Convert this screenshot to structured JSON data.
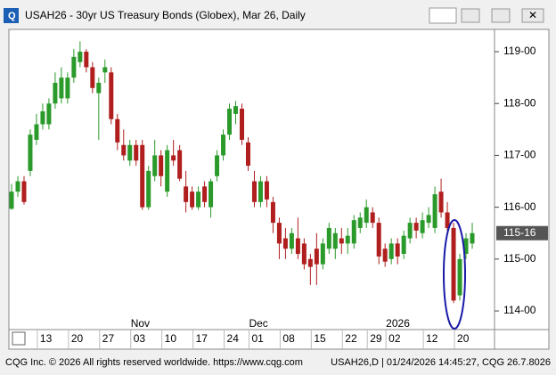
{
  "window": {
    "title": "USAH26 - 30yr US Treasury Bonds (Globex), Mar 26, Daily",
    "footer_left": "CQG Inc. © 2026 All rights reserved worldwide. https://www.cqg.com",
    "footer_right": "USAH26,D | 01/24/2026 14:45:27, CQG 26.7.8026"
  },
  "chart_data": {
    "type": "candlestick",
    "categories": [
      null,
      null,
      null,
      null,
      null,
      "13",
      null,
      null,
      null,
      null,
      "20",
      null,
      null,
      null,
      null,
      "27",
      null,
      null,
      null,
      null,
      "03",
      null,
      null,
      null,
      null,
      "10",
      null,
      null,
      null,
      null,
      "17",
      null,
      null,
      null,
      null,
      "24",
      null,
      null,
      null,
      "01",
      null,
      null,
      null,
      null,
      "08",
      null,
      null,
      null,
      null,
      "15",
      null,
      null,
      null,
      null,
      "22",
      null,
      null,
      null,
      "29",
      null,
      null,
      "02",
      null,
      null,
      null,
      null,
      null,
      "12",
      null,
      null,
      null,
      null,
      "20",
      null,
      null
    ],
    "months": [
      null,
      null,
      null,
      null,
      null,
      null,
      null,
      null,
      null,
      null,
      null,
      null,
      null,
      null,
      null,
      null,
      null,
      null,
      null,
      null,
      "Nov",
      null,
      null,
      null,
      null,
      null,
      null,
      null,
      null,
      null,
      null,
      null,
      null,
      null,
      null,
      null,
      null,
      null,
      null,
      "Dec",
      null,
      null,
      null,
      null,
      null,
      null,
      null,
      null,
      null,
      null,
      null,
      null,
      null,
      null,
      null,
      null,
      null,
      null,
      null,
      null,
      null,
      "2026",
      null,
      null,
      null,
      null,
      null,
      null,
      null,
      null,
      null,
      null,
      null,
      null,
      null
    ],
    "open": [
      115.97,
      116.3,
      116.5,
      116.7,
      117.3,
      117.6,
      117.6,
      118.0,
      118.1,
      118.1,
      118.5,
      118.8,
      119.0,
      118.7,
      118.2,
      118.6,
      118.6,
      117.7,
      117.2,
      116.9,
      117.2,
      117.2,
      116.0,
      116.6,
      117.0,
      116.3,
      117.0,
      117.1,
      116.4,
      116.3,
      116.0,
      116.4,
      116.0,
      116.6,
      117.0,
      117.4,
      117.8,
      117.9,
      117.25,
      116.5,
      116.1,
      116.5,
      116.1,
      115.7,
      115.4,
      115.2,
      115.4,
      115.3,
      115.0,
      115.2,
      114.9,
      115.2,
      115.2,
      115.4,
      115.3,
      115.3,
      115.6,
      115.7,
      115.9,
      115.7,
      115.2,
      115.0,
      115.3,
      115.1,
      115.4,
      115.7,
      115.5,
      115.7,
      115.6,
      116.3,
      115.9,
      115.6,
      114.3,
      115.1,
      115.3
    ],
    "high": [
      116.45,
      116.6,
      116.6,
      117.5,
      117.8,
      118.0,
      118.1,
      118.6,
      118.7,
      118.6,
      119.05,
      119.2,
      119.05,
      118.8,
      118.5,
      118.85,
      118.7,
      117.8,
      117.5,
      117.3,
      117.3,
      117.3,
      116.8,
      117.3,
      117.1,
      117.2,
      117.3,
      117.2,
      116.7,
      116.4,
      116.4,
      116.5,
      116.55,
      117.1,
      117.5,
      118.0,
      118.05,
      118.0,
      117.35,
      116.7,
      116.6,
      116.6,
      116.2,
      115.8,
      115.6,
      115.6,
      115.8,
      115.4,
      115.1,
      115.5,
      115.4,
      115.7,
      115.6,
      115.6,
      115.6,
      115.85,
      115.9,
      116.15,
      116.0,
      115.8,
      115.3,
      115.4,
      115.4,
      115.55,
      115.8,
      115.8,
      115.9,
      116.0,
      116.4,
      116.55,
      116.1,
      115.7,
      115.1,
      115.5,
      115.7
    ],
    "low": [
      115.95,
      116.2,
      116.05,
      116.6,
      117.2,
      117.5,
      117.5,
      117.9,
      118.0,
      118.0,
      118.4,
      118.7,
      118.6,
      118.2,
      117.3,
      118.4,
      117.6,
      117.1,
      116.9,
      116.8,
      116.8,
      115.95,
      115.95,
      116.5,
      116.4,
      116.2,
      116.8,
      116.5,
      115.9,
      115.95,
      115.95,
      116.0,
      115.8,
      116.5,
      116.9,
      117.3,
      117.6,
      117.2,
      116.7,
      116.0,
      116.0,
      116.0,
      115.5,
      115.0,
      115.0,
      115.1,
      115.0,
      114.8,
      114.5,
      114.5,
      114.8,
      115.1,
      115.0,
      115.1,
      115.1,
      115.2,
      115.5,
      115.6,
      115.6,
      114.9,
      114.85,
      114.9,
      114.9,
      115.0,
      115.3,
      115.4,
      115.4,
      115.6,
      115.5,
      115.8,
      115.5,
      114.15,
      114.2,
      115.0,
      115.2
    ],
    "close": [
      116.3,
      116.5,
      116.1,
      117.4,
      117.6,
      117.85,
      118.0,
      118.4,
      118.5,
      118.5,
      118.9,
      119.0,
      118.7,
      118.3,
      118.4,
      118.7,
      117.7,
      117.25,
      117.0,
      117.2,
      116.9,
      116.0,
      116.7,
      117.0,
      116.6,
      117.1,
      116.9,
      116.55,
      116.1,
      116.0,
      116.3,
      116.1,
      116.5,
      117.0,
      117.4,
      117.9,
      117.95,
      117.3,
      116.8,
      116.1,
      116.5,
      116.15,
      115.7,
      115.3,
      115.2,
      115.5,
      115.1,
      114.9,
      114.85,
      114.9,
      115.3,
      115.6,
      115.5,
      115.3,
      115.45,
      115.75,
      115.8,
      116.0,
      115.7,
      115.05,
      114.95,
      115.3,
      115.05,
      115.45,
      115.7,
      115.55,
      115.75,
      115.85,
      116.25,
      115.9,
      115.6,
      114.2,
      115.0,
      115.4,
      115.5
    ],
    "up_color": "#2a9a2a",
    "down_color": "#b01e1e",
    "ylim": [
      113.64,
      119.43
    ],
    "yticks": [
      {
        "value": 114,
        "label": "114-00"
      },
      {
        "value": 115,
        "label": "115-00"
      },
      {
        "value": 116,
        "label": "116-00"
      },
      {
        "value": 117,
        "label": "117-00"
      },
      {
        "value": 118,
        "label": "118-00"
      },
      {
        "value": 119,
        "label": "119-00"
      }
    ],
    "last_price": {
      "value": 115.5,
      "label": "115-16"
    }
  }
}
